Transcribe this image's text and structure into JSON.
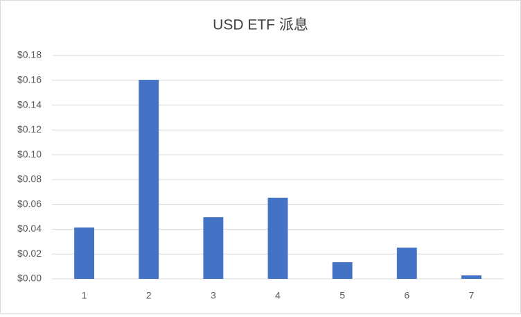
{
  "chart_data": {
    "type": "bar",
    "title": "USD ETF 派息",
    "categories": [
      "1",
      "2",
      "3",
      "4",
      "5",
      "6",
      "7"
    ],
    "values": [
      0.0414,
      0.1604,
      0.0497,
      0.0654,
      0.0134,
      0.0252,
      0.0028
    ],
    "color": "#4472c4",
    "ylim": [
      0,
      0.18
    ],
    "yticks": [
      {
        "value": 0,
        "label": "$0.00"
      },
      {
        "value": 0.02,
        "label": "$0.02"
      },
      {
        "value": 0.04,
        "label": "$0.04"
      },
      {
        "value": 0.06,
        "label": "$0.06"
      },
      {
        "value": 0.08,
        "label": "$0.08"
      },
      {
        "value": 0.1,
        "label": "$0.10"
      },
      {
        "value": 0.12,
        "label": "$0.12"
      },
      {
        "value": 0.14,
        "label": "$0.14"
      },
      {
        "value": 0.16,
        "label": "$0.16"
      },
      {
        "value": 0.18,
        "label": "$0.18"
      }
    ],
    "grid": true
  }
}
